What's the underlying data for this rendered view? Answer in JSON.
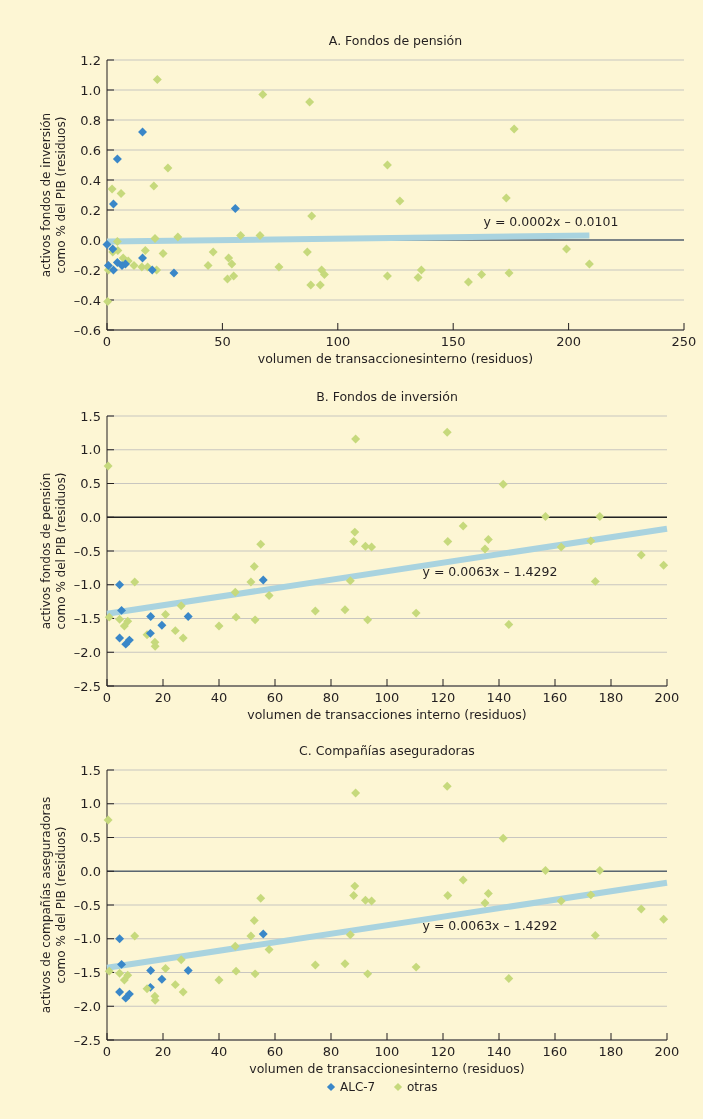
{
  "chart_data": [
    {
      "type": "scatter",
      "title": "A. Fondos de pensión",
      "xlabel": "volumen de transaccionesinterno (residuos)",
      "ylabel": "activos fondos de inversión\ncomo % del PIB (residuos)",
      "marker": "diamond",
      "grid": "y",
      "legend": false,
      "xlim": [
        0,
        250
      ],
      "xticks": [
        0,
        50,
        100,
        150,
        200,
        250
      ],
      "ylim": [
        -0.6,
        1.2
      ],
      "yticks": [
        {
          "value": 1.2,
          "label": "1.2"
        },
        {
          "value": 1,
          "label": "1.0"
        },
        {
          "value": 0.8,
          "label": "0.8"
        },
        {
          "value": 0.6,
          "label": "0.6"
        },
        {
          "value": 0.4,
          "label": "0.4"
        },
        {
          "value": 0.2,
          "label": "0.2"
        },
        {
          "value": 0,
          "label": "0.0"
        },
        {
          "value": -0.2,
          "label": "–0.2"
        },
        {
          "value": -0.4,
          "label": "–0.4"
        },
        {
          "value": -0.6,
          "label": "–0.6"
        }
      ],
      "ref_lines": [
        {
          "axis": "y",
          "value": 0,
          "color": "#5a6670"
        }
      ],
      "annotations": [
        "y = 0.0002x – 0.0101"
      ],
      "series": [
        {
          "type": "line",
          "marker": "none",
          "color": "#a9d3df",
          "x": [
            0,
            209
          ],
          "values": [
            -0.01,
            0.03
          ]
        },
        {
          "color": "#c6d97c",
          "x": [
            21.8,
            67.5,
            87.8,
            26.4,
            20.3,
            2.2,
            6.1,
            88.7,
            4.5,
            20.8,
            30.7,
            57.9,
            66.3,
            0.3,
            0.6,
            2.5,
            4.7,
            7,
            9.2,
            11.7,
            15.1,
            16.6,
            17.6,
            21.5,
            24.3,
            43.8,
            46,
            52.7,
            52.2,
            54.1,
            54.9,
            74.5,
            86.8,
            88.3,
            92.4,
            93,
            94.2,
            121.5,
            126.9,
            176.4,
            173,
            121.5,
            134.8,
            136.2,
            156.6,
            162.3,
            174.2,
            199.1,
            209
          ],
          "values": [
            1.07,
            0.97,
            0.92,
            0.48,
            0.36,
            0.34,
            0.31,
            0.16,
            -0.01,
            0.01,
            0.02,
            0.03,
            0.03,
            -0.41,
            -0.2,
            -0.08,
            -0.07,
            -0.12,
            -0.14,
            -0.17,
            -0.18,
            -0.07,
            -0.18,
            -0.2,
            -0.09,
            -0.17,
            -0.08,
            -0.12,
            -0.26,
            -0.16,
            -0.24,
            -0.18,
            -0.08,
            -0.3,
            -0.3,
            -0.2,
            -0.23,
            0.5,
            0.26,
            0.74,
            0.28,
            -0.24,
            -0.25,
            -0.2,
            -0.28,
            -0.23,
            -0.22,
            -0.06,
            -0.16
          ]
        },
        {
          "color": "#3a87c8",
          "x": [
            0,
            2.5,
            0.6,
            2.8,
            2.8,
            4.5,
            4.5,
            6.5,
            8,
            15.4,
            15.4,
            19.6,
            29,
            55.6
          ],
          "values": [
            -0.03,
            -0.06,
            -0.17,
            -0.2,
            0.24,
            0.54,
            -0.15,
            -0.17,
            -0.16,
            0.72,
            -0.12,
            -0.2,
            -0.22,
            0.21
          ]
        }
      ]
    },
    {
      "type": "scatter",
      "title": "B. Fondos de inversión",
      "xlabel": "volumen de transacciones interno (residuos)",
      "ylabel": "activos fondos de pensión\ncomo % del PIB (residuos)",
      "marker": "diamond",
      "grid": "y",
      "legend": false,
      "xlim": [
        0,
        200
      ],
      "xticks": [
        0,
        20,
        40,
        60,
        80,
        100,
        120,
        140,
        160,
        180,
        200
      ],
      "ylim": [
        -2.5,
        1.5
      ],
      "yticks": [
        {
          "value": 1.5,
          "label": "1.5"
        },
        {
          "value": 1,
          "label": "1.0"
        },
        {
          "value": 0.5,
          "label": "0.5"
        },
        {
          "value": 0,
          "label": "0.0"
        },
        {
          "value": -0.5,
          "label": "–0.5"
        },
        {
          "value": -1,
          "label": "–1.0"
        },
        {
          "value": -1.5,
          "label": "–1.5"
        },
        {
          "value": -2,
          "label": "–2.0"
        },
        {
          "value": -2.5,
          "label": "–2.5"
        }
      ],
      "ref_lines": [
        {
          "axis": "y",
          "value": 0,
          "color": "#222222"
        }
      ],
      "annotations": [
        "y = 0.0063x – 1.4292"
      ],
      "series": [
        {
          "type": "line",
          "marker": "none",
          "color": "#a9d3df",
          "x": [
            0,
            200
          ],
          "values": [
            -1.43,
            -0.17
          ]
        },
        {
          "color": "#c6d97c",
          "x": [
            0.4,
            0.8,
            4.5,
            6.2,
            7.4,
            9.9,
            14.3,
            17.1,
            17.2,
            20.9,
            24.4,
            26.5,
            27.2,
            40,
            45.8,
            46.1,
            51.4,
            52.6,
            52.9,
            54.9,
            57.9,
            74.4,
            85,
            86.9,
            88.1,
            88.5,
            88.8,
            92.3,
            93.1,
            94.5,
            121.5,
            141.5,
            156.6,
            176,
            127.2,
            121.7,
            136.2,
            135,
            162.2,
            172.8,
            190.8,
            198.8,
            174.4,
            110.4,
            143.5
          ],
          "values": [
            0.76,
            -1.48,
            -1.51,
            -1.61,
            -1.54,
            -0.96,
            -1.74,
            -1.85,
            -1.91,
            -1.44,
            -1.68,
            -1.31,
            -1.79,
            -1.61,
            -1.11,
            -1.48,
            -0.96,
            -0.73,
            -1.52,
            -0.4,
            -1.16,
            -1.39,
            -1.37,
            -0.94,
            -0.36,
            -0.22,
            1.16,
            -0.43,
            -1.52,
            -0.44,
            1.26,
            0.49,
            0.01,
            0.01,
            -0.13,
            -0.36,
            -0.33,
            -0.47,
            -0.44,
            -0.35,
            -0.56,
            -0.71,
            -0.95,
            -1.42,
            -1.59
          ]
        },
        {
          "color": "#3a87c8",
          "x": [
            4.5,
            5.2,
            4.5,
            6.7,
            8,
            15.6,
            15.5,
            19.6,
            29,
            55.8
          ],
          "values": [
            -1,
            -1.38,
            -1.79,
            -1.88,
            -1.82,
            -1.47,
            -1.72,
            -1.6,
            -1.47,
            -0.93
          ]
        }
      ]
    },
    {
      "type": "scatter",
      "title": "C. Compañías aseguradoras",
      "xlabel": "volumen de transaccionesinterno (residuos)",
      "ylabel": "activos de compañías aseguradoras\ncomo % del PIB (residuos)",
      "marker": "diamond",
      "grid": "y",
      "legend": "bottom",
      "xlim": [
        0,
        200
      ],
      "xticks": [
        0,
        20,
        40,
        60,
        80,
        100,
        120,
        140,
        160,
        180,
        200
      ],
      "ylim": [
        -2.5,
        1.5
      ],
      "yticks": [
        {
          "value": 1.5,
          "label": "1.5"
        },
        {
          "value": 1,
          "label": "1.0"
        },
        {
          "value": 0.5,
          "label": "0.5"
        },
        {
          "value": 0,
          "label": "0.0"
        },
        {
          "value": -0.5,
          "label": "–0.5"
        },
        {
          "value": -1,
          "label": "–1.0"
        },
        {
          "value": -1.5,
          "label": "–1.5"
        },
        {
          "value": -2,
          "label": "–2.0"
        },
        {
          "value": -2.5,
          "label": "–2.5"
        }
      ],
      "ref_lines": [
        {
          "axis": "y",
          "value": 0,
          "color": "#5a6670"
        }
      ],
      "annotations": [
        "y = 0.0063x – 1.4292"
      ],
      "series": [
        {
          "type": "line",
          "marker": "none",
          "color": "#a9d3df",
          "x": [
            0,
            200
          ],
          "values": [
            -1.43,
            -0.17
          ]
        },
        {
          "name": "ALC-7",
          "color": "#3a87c8",
          "x": [
            4.5,
            5.2,
            4.5,
            6.7,
            8,
            15.6,
            15.5,
            19.6,
            29,
            55.8
          ],
          "values": [
            -1,
            -1.38,
            -1.79,
            -1.88,
            -1.82,
            -1.47,
            -1.72,
            -1.6,
            -1.47,
            -0.93
          ]
        },
        {
          "name": "otras",
          "color": "#c6d97c",
          "x": [
            0.4,
            0.8,
            4.5,
            6.2,
            7.4,
            9.9,
            14.3,
            17.1,
            17.2,
            20.9,
            24.4,
            26.5,
            27.2,
            40,
            45.8,
            46.1,
            51.4,
            52.6,
            52.9,
            54.9,
            57.9,
            74.4,
            85,
            86.9,
            88.1,
            88.5,
            88.8,
            92.3,
            93.1,
            94.5,
            121.5,
            141.5,
            156.6,
            176,
            127.2,
            121.7,
            136.2,
            135,
            162.2,
            172.8,
            190.8,
            198.8,
            174.4,
            110.4,
            143.5
          ],
          "values": [
            0.76,
            -1.48,
            -1.51,
            -1.61,
            -1.54,
            -0.96,
            -1.74,
            -1.85,
            -1.91,
            -1.44,
            -1.68,
            -1.31,
            -1.79,
            -1.61,
            -1.11,
            -1.48,
            -0.96,
            -0.73,
            -1.52,
            -0.4,
            -1.16,
            -1.39,
            -1.37,
            -0.94,
            -0.36,
            -0.22,
            1.16,
            -0.43,
            -1.52,
            -0.44,
            1.26,
            0.49,
            0.01,
            0.01,
            -0.13,
            -0.36,
            -0.33,
            -0.47,
            -0.44,
            -0.35,
            -0.56,
            -0.71,
            -0.95,
            -1.42,
            -1.59
          ]
        }
      ]
    }
  ]
}
